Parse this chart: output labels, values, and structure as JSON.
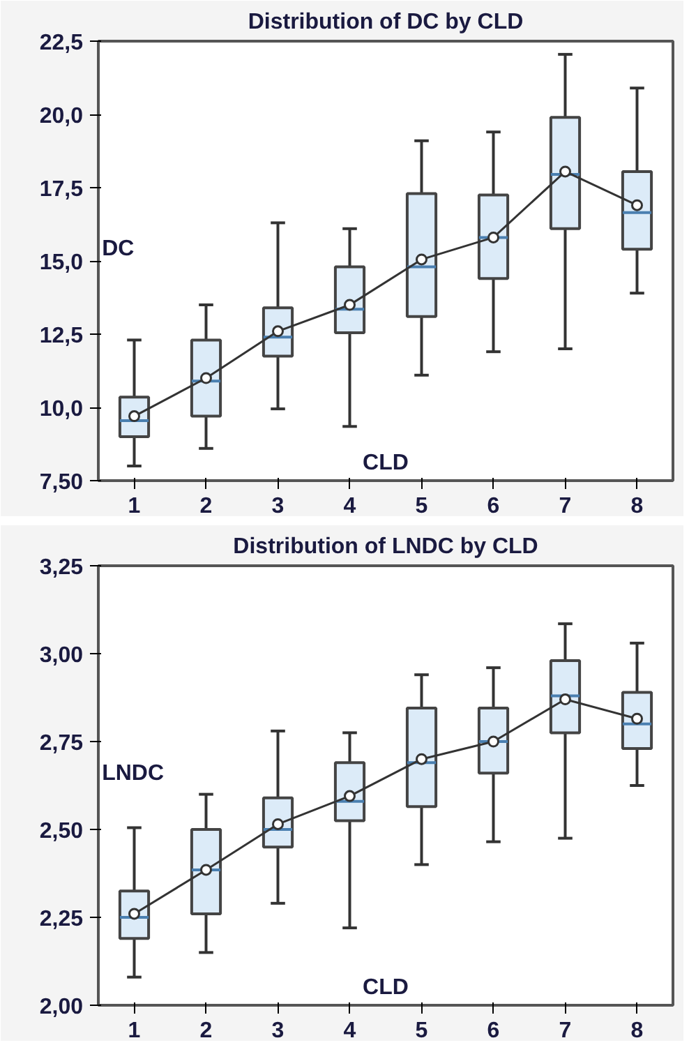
{
  "chart_data": [
    {
      "type": "box",
      "title": "Distribution of DC by CLD",
      "xlabel": "CLD",
      "ylabel": "DC",
      "categories": [
        "1",
        "2",
        "3",
        "4",
        "5",
        "6",
        "7",
        "8"
      ],
      "ylim": [
        7.5,
        22.5
      ],
      "yticks": [
        {
          "value": 7.5,
          "label": "7,50"
        },
        {
          "value": 10,
          "label": "10,0"
        },
        {
          "value": 12.5,
          "label": "12,5"
        },
        {
          "value": 15,
          "label": "15,0"
        },
        {
          "value": 17.5,
          "label": "17,5"
        },
        {
          "value": 20,
          "label": "20,0"
        },
        {
          "value": 22.5,
          "label": "22,5"
        }
      ],
      "grid": false,
      "series": [
        {
          "color": "#dcebf8",
          "boxes": [
            {
              "low": 8.0,
              "q1": 9.0,
              "median": 9.55,
              "q3": 10.35,
              "high": 12.3
            },
            {
              "low": 8.6,
              "q1": 9.7,
              "median": 10.9,
              "q3": 12.3,
              "high": 13.5
            },
            {
              "low": 9.95,
              "q1": 11.75,
              "median": 12.4,
              "q3": 13.4,
              "high": 16.3
            },
            {
              "low": 9.35,
              "q1": 12.55,
              "median": 13.35,
              "q3": 14.8,
              "high": 16.1
            },
            {
              "low": 11.1,
              "q1": 13.1,
              "median": 14.8,
              "q3": 17.3,
              "high": 19.1
            },
            {
              "low": 11.9,
              "q1": 14.4,
              "median": 15.8,
              "q3": 17.25,
              "high": 19.4
            },
            {
              "low": 12.0,
              "q1": 16.1,
              "median": 17.95,
              "q3": 19.9,
              "high": 22.05
            },
            {
              "low": 13.9,
              "q1": 15.4,
              "median": 16.65,
              "q3": 18.05,
              "high": 20.9
            }
          ]
        },
        {
          "type": "line",
          "color": "#333333",
          "marker": "circle",
          "values": [
            9.7,
            11.0,
            12.6,
            13.5,
            15.05,
            15.8,
            18.05,
            16.9
          ]
        }
      ]
    },
    {
      "type": "box",
      "title": "Distribution of LNDC by CLD",
      "xlabel": "CLD",
      "ylabel": "LNDC",
      "categories": [
        "1",
        "2",
        "3",
        "4",
        "5",
        "6",
        "7",
        "8"
      ],
      "ylim": [
        2.0,
        3.25
      ],
      "yticks": [
        {
          "value": 2.0,
          "label": "2,00"
        },
        {
          "value": 2.25,
          "label": "2,25"
        },
        {
          "value": 2.5,
          "label": "2,50"
        },
        {
          "value": 2.75,
          "label": "2,75"
        },
        {
          "value": 3.0,
          "label": "3,00"
        },
        {
          "value": 3.25,
          "label": "3,25"
        }
      ],
      "grid": false,
      "series": [
        {
          "color": "#dcebf8",
          "boxes": [
            {
              "low": 2.08,
              "q1": 2.19,
              "median": 2.25,
              "q3": 2.325,
              "high": 2.505
            },
            {
              "low": 2.15,
              "q1": 2.26,
              "median": 2.385,
              "q3": 2.5,
              "high": 2.6
            },
            {
              "low": 2.29,
              "q1": 2.45,
              "median": 2.5,
              "q3": 2.59,
              "high": 2.78
            },
            {
              "low": 2.22,
              "q1": 2.525,
              "median": 2.58,
              "q3": 2.69,
              "high": 2.775
            },
            {
              "low": 2.4,
              "q1": 2.565,
              "median": 2.69,
              "q3": 2.845,
              "high": 2.94
            },
            {
              "low": 2.465,
              "q1": 2.66,
              "median": 2.75,
              "q3": 2.845,
              "high": 2.96
            },
            {
              "low": 2.475,
              "q1": 2.775,
              "median": 2.88,
              "q3": 2.98,
              "high": 3.085
            },
            {
              "low": 2.625,
              "q1": 2.73,
              "median": 2.8,
              "q3": 2.89,
              "high": 3.03
            }
          ]
        },
        {
          "type": "line",
          "color": "#333333",
          "marker": "circle",
          "values": [
            2.26,
            2.385,
            2.515,
            2.595,
            2.7,
            2.75,
            2.87,
            2.815
          ]
        }
      ]
    }
  ]
}
